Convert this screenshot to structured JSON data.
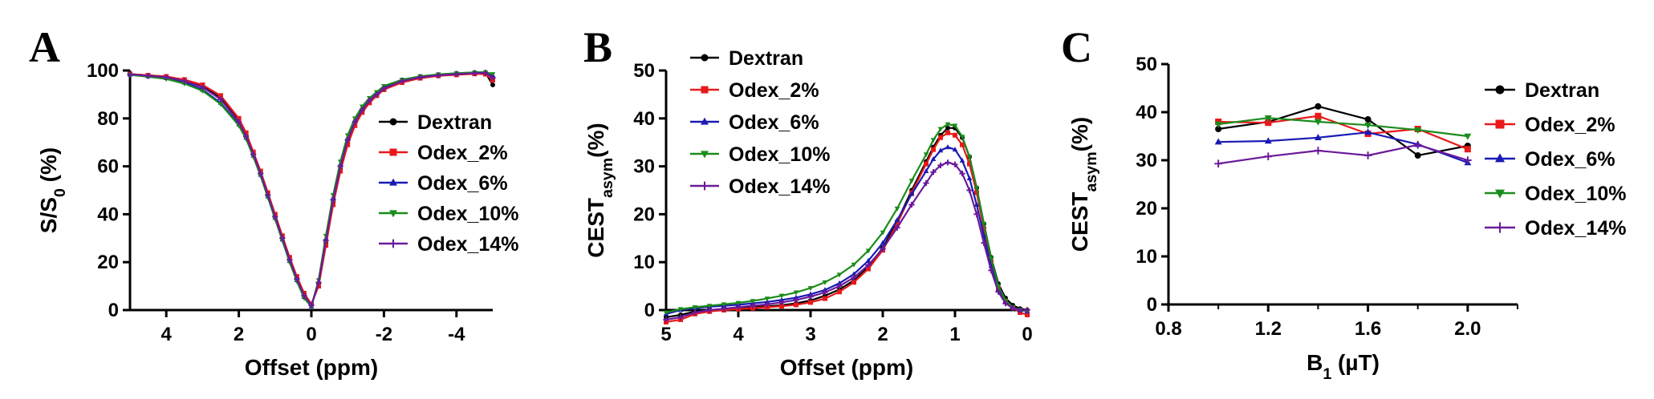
{
  "figure": {
    "letters": [
      "A",
      "B",
      "C"
    ]
  },
  "chart_data": [
    {
      "type": "line",
      "panel": "A",
      "xlabel": "Offset (ppm)",
      "ylabel_parts": [
        {
          "text": "S/S",
          "sub": false
        },
        {
          "text": "0",
          "sub": true
        },
        {
          "text": " (%)",
          "sub": false
        }
      ],
      "xlim": [
        5,
        -5
      ],
      "ylim": [
        0,
        100
      ],
      "xticks": [
        4,
        2,
        0,
        -2,
        -4
      ],
      "xtick_labels": [
        "4",
        "2",
        "0",
        "-2",
        "-4"
      ],
      "yticks": [
        0,
        20,
        40,
        60,
        80,
        100
      ],
      "ytick_labels": [
        "0",
        "20",
        "40",
        "60",
        "80",
        "100"
      ],
      "legend_position": "right-middle",
      "series": [
        {
          "name": "Dextran",
          "color": "#000000",
          "marker": "circle",
          "x": [
            5,
            4.5,
            4,
            3.5,
            3,
            2.5,
            2,
            1.8,
            1.6,
            1.4,
            1.2,
            1,
            0.8,
            0.6,
            0.4,
            0.2,
            0,
            -0.2,
            -0.4,
            -0.6,
            -0.8,
            -1,
            -1.2,
            -1.4,
            -1.6,
            -1.8,
            -2,
            -2.5,
            -3,
            -3.5,
            -4,
            -4.5,
            -4.8,
            -5
          ],
          "y": [
            98.5,
            98,
            97.5,
            96,
            93.5,
            88.5,
            79,
            73,
            65,
            57,
            48,
            39,
            30,
            21,
            13,
            6,
            2,
            11,
            28,
            45,
            59,
            70,
            78,
            83,
            87,
            90,
            92.5,
            95.5,
            97,
            98,
            98.5,
            99,
            99,
            94
          ]
        },
        {
          "name": "Odex_2%",
          "color": "#e8191a",
          "marker": "square",
          "x": [
            5,
            4.5,
            4,
            3.5,
            3,
            2.5,
            2,
            1.8,
            1.6,
            1.4,
            1.2,
            1,
            0.8,
            0.6,
            0.4,
            0.2,
            0,
            -0.2,
            -0.4,
            -0.6,
            -0.8,
            -1,
            -1.2,
            -1.4,
            -1.6,
            -1.8,
            -2,
            -2.5,
            -3,
            -3.5,
            -4,
            -4.5,
            -4.8,
            -5
          ],
          "y": [
            98.5,
            98,
            97.5,
            96.2,
            94,
            89.5,
            80,
            74,
            66,
            58,
            49,
            40,
            31,
            22,
            14,
            7,
            2.5,
            10,
            27,
            44,
            58,
            69,
            77,
            82.5,
            86.5,
            89.5,
            92,
            95,
            96.8,
            97.8,
            98.2,
            98.6,
            98.5,
            96
          ]
        },
        {
          "name": "Odex_6%",
          "color": "#1a1ab4",
          "marker": "triangle-up",
          "x": [
            5,
            4.5,
            4,
            3.5,
            3,
            2.5,
            2,
            1.8,
            1.6,
            1.4,
            1.2,
            1,
            0.8,
            0.6,
            0.4,
            0.2,
            0,
            -0.2,
            -0.4,
            -0.6,
            -0.8,
            -1,
            -1.2,
            -1.4,
            -1.6,
            -1.8,
            -2,
            -2.5,
            -3,
            -3.5,
            -4,
            -4.5,
            -4.8,
            -5
          ],
          "y": [
            98.3,
            97.6,
            96.8,
            95,
            92,
            86.5,
            77.5,
            72,
            64.5,
            56.5,
            47.5,
            38.5,
            29.5,
            20.5,
            12.5,
            5.5,
            1.5,
            12,
            30,
            47,
            61,
            72,
            79.5,
            84.5,
            88,
            90.5,
            93,
            96,
            97.5,
            98.3,
            98.8,
            99.2,
            99.3,
            98
          ]
        },
        {
          "name": "Odex_10%",
          "color": "#1a8c1a",
          "marker": "triangle-down",
          "x": [
            5,
            4.5,
            4,
            3.5,
            3,
            2.5,
            2,
            1.8,
            1.6,
            1.4,
            1.2,
            1,
            0.8,
            0.6,
            0.4,
            0.2,
            0,
            -0.2,
            -0.4,
            -0.6,
            -0.8,
            -1,
            -1.2,
            -1.4,
            -1.6,
            -1.8,
            -2,
            -2.5,
            -3,
            -3.5,
            -4,
            -4.5,
            -4.8,
            -5
          ],
          "y": [
            98.2,
            97.4,
            96.5,
            94.5,
            91.5,
            86,
            77,
            71.5,
            64,
            56,
            47,
            38,
            29,
            20,
            12,
            5,
            1.5,
            12.5,
            31,
            48,
            62,
            73,
            80,
            85,
            88.5,
            91,
            93.5,
            96.2,
            97.6,
            98.4,
            98.9,
            99.2,
            99.3,
            98.5
          ]
        },
        {
          "name": "Odex_14%",
          "color": "#6a1a9a",
          "marker": "plus",
          "x": [
            5,
            4.5,
            4,
            3.5,
            3,
            2.5,
            2,
            1.8,
            1.6,
            1.4,
            1.2,
            1,
            0.8,
            0.6,
            0.4,
            0.2,
            0,
            -0.2,
            -0.4,
            -0.6,
            -0.8,
            -1,
            -1.2,
            -1.4,
            -1.6,
            -1.8,
            -2,
            -2.5,
            -3,
            -3.5,
            -4,
            -4.5,
            -4.8,
            -5
          ],
          "y": [
            98.4,
            97.8,
            97.2,
            95.6,
            93,
            88,
            78.5,
            72.5,
            65,
            57,
            48,
            39,
            30,
            21,
            13,
            6,
            2,
            11.5,
            29,
            46,
            60,
            71,
            78.5,
            83.5,
            87.5,
            90,
            92.5,
            95.6,
            97.2,
            98,
            98.5,
            98.9,
            99,
            97
          ]
        }
      ]
    },
    {
      "type": "line",
      "panel": "B",
      "xlabel": "Offset (ppm)",
      "ylabel_parts": [
        {
          "text": "CEST",
          "sub": false
        },
        {
          "text": "asym",
          "sub": true
        },
        {
          "text": "(%)",
          "sub": false
        }
      ],
      "xlim": [
        5,
        0
      ],
      "ylim": [
        0,
        50
      ],
      "xticks": [
        5,
        4,
        3,
        2,
        1,
        0
      ],
      "xtick_labels": [
        "5",
        "4",
        "3",
        "2",
        "1",
        "0"
      ],
      "yticks": [
        0,
        10,
        20,
        30,
        40,
        50
      ],
      "ytick_labels": [
        "0",
        "10",
        "20",
        "30",
        "40",
        "50"
      ],
      "legend_position": "top-left",
      "series": [
        {
          "name": "Dextran",
          "color": "#000000",
          "marker": "circle",
          "x": [
            5,
            4.8,
            4.6,
            4.4,
            4.2,
            4,
            3.8,
            3.6,
            3.4,
            3.2,
            3,
            2.8,
            2.6,
            2.4,
            2.2,
            2,
            1.8,
            1.6,
            1.4,
            1.3,
            1.2,
            1.1,
            1,
            0.9,
            0.8,
            0.7,
            0.6,
            0.5,
            0.4,
            0.3,
            0.2,
            0.1,
            0
          ],
          "y": [
            -1.5,
            -1,
            -0.3,
            0,
            0.2,
            0.4,
            0.6,
            0.8,
            1,
            1.4,
            2,
            3,
            4.3,
            6.2,
            9,
            13,
            18.5,
            25,
            31,
            34,
            36.5,
            38,
            38,
            36,
            32,
            25.5,
            18,
            11,
            5.5,
            2.5,
            1,
            0.3,
            0
          ]
        },
        {
          "name": "Odex_2%",
          "color": "#e8191a",
          "marker": "square",
          "x": [
            5,
            4.8,
            4.6,
            4.4,
            4.2,
            4,
            3.8,
            3.6,
            3.4,
            3.2,
            3,
            2.8,
            2.6,
            2.4,
            2.2,
            2,
            1.8,
            1.6,
            1.4,
            1.3,
            1.2,
            1.1,
            1,
            0.9,
            0.8,
            0.7,
            0.6,
            0.5,
            0.4,
            0.3,
            0.2,
            0.1,
            0
          ],
          "y": [
            -2.5,
            -2,
            -0.8,
            -0.3,
            0,
            0.2,
            0.4,
            0.6,
            0.8,
            1.1,
            1.6,
            2.4,
            3.8,
            5.8,
            8.6,
            12.5,
            18,
            24.5,
            30.5,
            33.5,
            36,
            37,
            36.5,
            34.5,
            30.5,
            24.5,
            17,
            10,
            4.5,
            1.8,
            0.5,
            -0.5,
            -1
          ]
        },
        {
          "name": "Odex_6%",
          "color": "#1a1ab4",
          "marker": "triangle-up",
          "x": [
            5,
            4.8,
            4.6,
            4.4,
            4.2,
            4,
            3.8,
            3.6,
            3.4,
            3.2,
            3,
            2.8,
            2.6,
            2.4,
            2.2,
            2,
            1.8,
            1.6,
            1.4,
            1.3,
            1.2,
            1.1,
            1,
            0.9,
            0.8,
            0.7,
            0.6,
            0.5,
            0.4,
            0.3,
            0.2,
            0.1,
            0
          ],
          "y": [
            -0.8,
            0,
            0.4,
            0.7,
            0.9,
            1.1,
            1.4,
            1.7,
            2.1,
            2.6,
            3.3,
            4.2,
            5.6,
            7.5,
            10.3,
            14,
            18.8,
            24.2,
            29,
            31.5,
            33.3,
            34,
            33.5,
            31.2,
            27.5,
            22,
            15.5,
            9.2,
            4.3,
            1.6,
            0.5,
            0,
            -0.3
          ]
        },
        {
          "name": "Odex_10%",
          "color": "#1a8c1a",
          "marker": "triangle-down",
          "x": [
            5,
            4.8,
            4.6,
            4.4,
            4.2,
            4,
            3.8,
            3.6,
            3.4,
            3.2,
            3,
            2.8,
            2.6,
            2.4,
            2.2,
            2,
            1.8,
            1.6,
            1.4,
            1.3,
            1.2,
            1.1,
            1,
            0.9,
            0.8,
            0.7,
            0.6,
            0.5,
            0.4,
            0.3,
            0.2,
            0.1,
            0
          ],
          "y": [
            -0.5,
            0.2,
            0.6,
            0.9,
            1.2,
            1.5,
            1.9,
            2.4,
            3,
            3.7,
            4.6,
            5.8,
            7.4,
            9.5,
            12.4,
            16.2,
            21.2,
            27,
            32.5,
            35.5,
            37.8,
            38.8,
            38.5,
            36.2,
            32,
            25.5,
            18,
            10.8,
            5,
            2,
            0.6,
            0,
            -0.2
          ]
        },
        {
          "name": "Odex_14%",
          "color": "#6a1a9a",
          "marker": "plus",
          "x": [
            5,
            4.8,
            4.6,
            4.4,
            4.2,
            4,
            3.8,
            3.6,
            3.4,
            3.2,
            3,
            2.8,
            2.6,
            2.4,
            2.2,
            2,
            1.8,
            1.6,
            1.4,
            1.3,
            1.2,
            1.1,
            1,
            0.9,
            0.8,
            0.7,
            0.6,
            0.5,
            0.4,
            0.3,
            0.2,
            0.1,
            0
          ],
          "y": [
            -2,
            -1.5,
            -0.5,
            0,
            0.3,
            0.6,
            0.9,
            1.2,
            1.6,
            2.1,
            2.8,
            3.7,
            5,
            6.8,
            9.4,
            12.8,
            17.2,
            22,
            26.5,
            28.8,
            30.2,
            30.8,
            30.4,
            28.5,
            25,
            20,
            14,
            8.3,
            3.8,
            1.4,
            0.4,
            0,
            0
          ]
        }
      ]
    },
    {
      "type": "line",
      "panel": "C",
      "xlabel_parts": [
        {
          "text": "B",
          "sub": false
        },
        {
          "text": "1",
          "sub": true
        },
        {
          "text": " (µT)",
          "sub": false
        }
      ],
      "ylabel_parts": [
        {
          "text": "CEST",
          "sub": false
        },
        {
          "text": "asym",
          "sub": true
        },
        {
          "text": "(%)",
          "sub": false
        }
      ],
      "xlim": [
        0.8,
        2.2
      ],
      "ylim": [
        0,
        50
      ],
      "xticks": [
        0.8,
        1.2,
        1.6,
        2.0
      ],
      "xtick_labels": [
        "0.8",
        "1.2",
        "1.6",
        "2.0"
      ],
      "xminor": [
        1.0,
        1.4,
        1.8,
        2.2
      ],
      "yticks": [
        0,
        10,
        20,
        30,
        40,
        50
      ],
      "ytick_labels": [
        "0",
        "10",
        "20",
        "30",
        "40",
        "50"
      ],
      "legend_position": "right",
      "series": [
        {
          "name": "Dextran",
          "color": "#000000",
          "marker": "circle",
          "x": [
            1.0,
            1.2,
            1.4,
            1.6,
            1.8,
            2.0
          ],
          "y": [
            36.5,
            38,
            41.2,
            38.5,
            31,
            33
          ]
        },
        {
          "name": "Odex_2%",
          "color": "#e8191a",
          "marker": "square",
          "x": [
            1.0,
            1.2,
            1.4,
            1.6,
            1.8,
            2.0
          ],
          "y": [
            38,
            37.8,
            39.2,
            35.5,
            36.5,
            32.3
          ]
        },
        {
          "name": "Odex_6%",
          "color": "#1a1ab4",
          "marker": "triangle-up",
          "x": [
            1.0,
            1.2,
            1.4,
            1.6,
            1.8,
            2.0
          ],
          "y": [
            33.8,
            34,
            34.7,
            35.8,
            33.3,
            29.5
          ]
        },
        {
          "name": "Odex_10%",
          "color": "#1a8c1a",
          "marker": "triangle-down",
          "x": [
            1.0,
            1.2,
            1.4,
            1.6,
            1.8,
            2.0
          ],
          "y": [
            37.5,
            38.8,
            38,
            37.3,
            36.3,
            35
          ]
        },
        {
          "name": "Odex_14%",
          "color": "#6a1a9a",
          "marker": "plus",
          "x": [
            1.0,
            1.2,
            1.4,
            1.6,
            1.8,
            2.0
          ],
          "y": [
            29.3,
            30.8,
            32,
            31,
            33.2,
            30
          ]
        }
      ]
    }
  ]
}
